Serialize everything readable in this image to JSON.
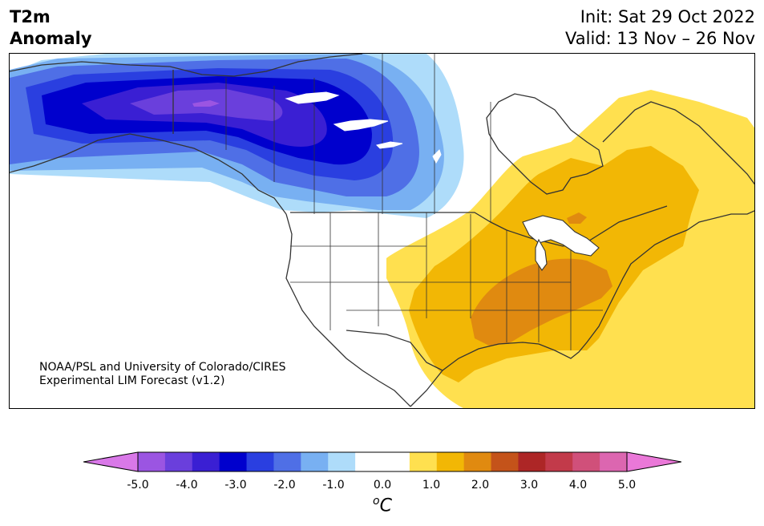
{
  "title": {
    "left_line1": "T2m",
    "left_line2": "Anomaly",
    "right_line1": "Init: Sat 29 Oct 2022",
    "right_line2": "Valid: 13 Nov – 26 Nov"
  },
  "credit": {
    "line1": "NOAA/PSL and University of Colorado/CIRES",
    "line2": "Experimental LIM Forecast (v1.2)"
  },
  "colorbar": {
    "unit_base": "C",
    "unit_sup": "o",
    "extend": "both",
    "ticks": [
      "-5.0",
      "-4.0",
      "-3.0",
      "-2.0",
      "-1.0",
      "0.0",
      "1.0",
      "2.0",
      "3.0",
      "4.0",
      "5.0"
    ],
    "under_color": "#d978e8",
    "over_color": "#ea78d8",
    "bins": [
      "#9b55e2",
      "#6a3fdc",
      "#3a1fd3",
      "#0000cd",
      "#2a3fe0",
      "#4f6fe6",
      "#78b0f2",
      "#aedcfa",
      "#ffffff",
      "#ffffff",
      "#ffe04f",
      "#f2b705",
      "#e08a10",
      "#c4531a",
      "#ad2626",
      "#c23a4a",
      "#d0507a",
      "#dc66b0"
    ]
  },
  "map": {
    "region": "North America",
    "field": "2m temperature anomaly",
    "cold_anomaly_region": "Alaska and western Canada",
    "warm_anomaly_region": "Central and eastern United States and eastern Canada"
  }
}
